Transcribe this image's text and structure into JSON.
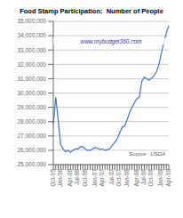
{
  "chart_data": {
    "type": "line",
    "title": "Food Stamp Participation:  Number of People",
    "subtitle": "www.mybudget360.com",
    "annotations": [
      "Source:  USDA"
    ],
    "categories": [
      "Oct-05",
      null,
      null,
      "Jan-06",
      null,
      null,
      null,
      "Apr-06",
      null,
      null,
      "Jul-06",
      null,
      null,
      "Oct-06",
      null,
      null,
      null,
      "Jan-07",
      null,
      null,
      "Apr-07",
      null,
      null,
      null,
      "Jul-07",
      null,
      null,
      "Oct-07",
      null,
      null,
      "Jan-08",
      null,
      null,
      null,
      "Apr-08",
      null,
      null,
      "Jul-08",
      null,
      null,
      "Oct-08",
      null,
      null,
      null,
      "Jan-09",
      null,
      null,
      "Apr-09"
    ],
    "values": [
      27800000,
      29700000,
      28100000,
      26400000,
      26100000,
      25900000,
      26000000,
      25850000,
      26000000,
      26100000,
      26100000,
      26250000,
      26250000,
      26100000,
      26000000,
      26000000,
      26100000,
      26200000,
      26150000,
      26050000,
      26100000,
      26000000,
      26050000,
      26100000,
      26350000,
      26550000,
      26800000,
      27200000,
      27600000,
      27700000,
      28100000,
      28600000,
      29000000,
      29300000,
      29600000,
      29700000,
      30800000,
      31100000,
      31000000,
      30900000,
      31050000,
      31200000,
      31500000,
      32000000,
      32800000,
      33500000,
      34200000,
      34700000
    ],
    "color": "#4472C4",
    "ylim": [
      25000000,
      35000000
    ],
    "yticks": [
      {
        "value": 25000000,
        "label": "25,000,000"
      },
      {
        "value": 26000000,
        "label": "26,000,000"
      },
      {
        "value": 27000000,
        "label": "27,000,000"
      },
      {
        "value": 28000000,
        "label": "28,000,000"
      },
      {
        "value": 29000000,
        "label": "29,000,000"
      },
      {
        "value": 30000000,
        "label": "30,000,000"
      },
      {
        "value": 31000000,
        "label": "31,000,000"
      },
      {
        "value": 32000000,
        "label": "32,000,000"
      },
      {
        "value": 33000000,
        "label": "33,000,000"
      },
      {
        "value": 34000000,
        "label": "34,000,000"
      },
      {
        "value": 35000000,
        "label": "35,000,000"
      }
    ],
    "grid": true
  }
}
